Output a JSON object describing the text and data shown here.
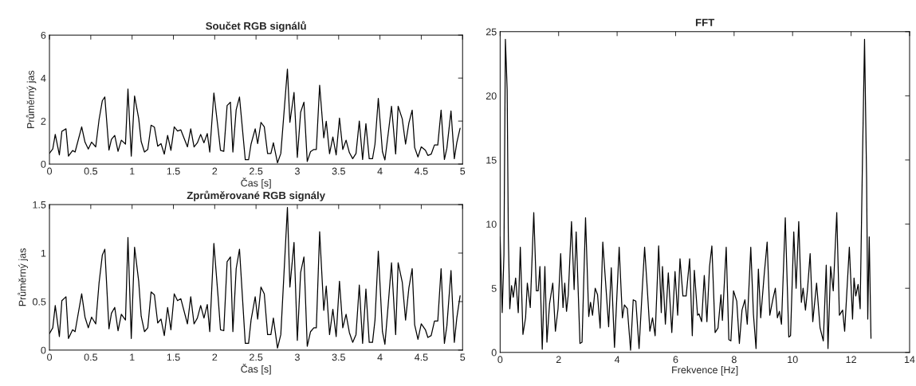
{
  "chart_data": [
    {
      "type": "line",
      "title": "Součet RGB signálů",
      "xlabel": "Čas [s]",
      "ylabel": "Průměrný jas",
      "x": [
        0,
        0.04,
        0.07,
        0.12,
        0.15,
        0.2,
        0.23,
        0.28,
        0.31,
        0.39,
        0.43,
        0.47,
        0.51,
        0.56,
        0.6,
        0.64,
        0.67,
        0.72,
        0.75,
        0.79,
        0.83,
        0.87,
        0.92,
        0.95,
        0.99,
        1.03,
        1.08,
        1.11,
        1.15,
        1.19,
        1.23,
        1.27,
        1.31,
        1.35,
        1.39,
        1.43,
        1.47,
        1.51,
        1.55,
        1.59,
        1.67,
        1.71,
        1.75,
        1.79,
        1.83,
        1.87,
        1.91,
        1.94,
        1.99,
        2.04,
        2.07,
        2.11,
        2.15,
        2.19,
        2.22,
        2.26,
        2.3,
        2.37,
        2.41,
        2.44,
        2.49,
        2.52,
        2.56,
        2.6,
        2.64,
        2.68,
        2.71,
        2.76,
        2.8,
        2.88,
        2.91,
        2.96,
        3.0,
        3.04,
        3.08,
        3.12,
        3.16,
        3.2,
        3.23,
        3.27,
        3.32,
        3.35,
        3.39,
        3.43,
        3.47,
        3.51,
        3.55,
        3.59,
        3.63,
        3.67,
        3.71,
        3.75,
        3.79,
        3.83,
        3.87,
        3.91,
        3.94,
        3.98,
        4.03,
        4.06,
        4.1,
        4.14,
        4.19,
        4.22,
        4.27,
        4.31,
        4.35,
        4.39,
        4.42,
        4.46,
        4.5,
        4.55,
        4.58,
        4.62,
        4.66,
        4.7,
        4.74,
        4.78,
        4.81,
        4.86,
        4.9,
        4.93,
        4.97
      ],
      "series": [
        {
          "color": "#000000",
          "values": [
            0.5,
            0.7,
            1.38,
            0.43,
            1.52,
            1.64,
            0.37,
            0.63,
            0.56,
            1.73,
            1.02,
            0.7,
            1.02,
            0.8,
            2.06,
            2.95,
            3.12,
            0.65,
            1.15,
            1.33,
            0.59,
            1.11,
            0.93,
            3.49,
            0.37,
            3.17,
            2.12,
            1.05,
            0.56,
            0.68,
            1.81,
            1.72,
            0.83,
            0.95,
            0.46,
            1.33,
            0.64,
            1.73,
            1.54,
            1.59,
            0.8,
            1.64,
            0.8,
            0.99,
            1.38,
            0.99,
            1.42,
            0.56,
            3.31,
            1.67,
            0.64,
            0.59,
            2.72,
            2.88,
            0.56,
            2.53,
            3.12,
            0.2,
            0.2,
            0.93,
            1.64,
            0.95,
            1.94,
            1.73,
            0.49,
            0.49,
            0.99,
            0.06,
            0.49,
            4.42,
            1.94,
            3.33,
            0.31,
            2.41,
            2.88,
            0.12,
            0.58,
            0.68,
            0.68,
            3.67,
            1.22,
            1.99,
            0.48,
            1.26,
            0.43,
            2.14,
            0.68,
            1.11,
            0.53,
            0.25,
            0.49,
            2.0,
            0.21,
            1.88,
            0.25,
            0.25,
            0.93,
            3.06,
            0.58,
            0.19,
            1.42,
            2.69,
            0.47,
            2.69,
            2.1,
            0.93,
            1.91,
            2.51,
            0.77,
            0.33,
            0.8,
            0.64,
            0.4,
            0.46,
            0.89,
            0.89,
            2.51,
            0.21,
            0.74,
            2.47,
            0.25,
            0.99,
            1.67
          ]
        }
      ],
      "xlim": [
        0,
        5
      ],
      "ylim": [
        0,
        6
      ],
      "xticks": [
        0,
        0.5,
        1,
        1.5,
        2,
        2.5,
        3,
        3.5,
        4,
        4.5,
        5
      ],
      "yticks": [
        0,
        2,
        4,
        6
      ]
    },
    {
      "type": "line",
      "title": "Zprůměrované RGB signály",
      "xlabel": "Čas [s]",
      "ylabel": "Průměrný jas",
      "x": [
        0,
        0.04,
        0.07,
        0.12,
        0.15,
        0.2,
        0.23,
        0.28,
        0.31,
        0.39,
        0.43,
        0.47,
        0.51,
        0.56,
        0.6,
        0.64,
        0.67,
        0.72,
        0.75,
        0.79,
        0.83,
        0.87,
        0.92,
        0.95,
        0.99,
        1.03,
        1.08,
        1.11,
        1.15,
        1.19,
        1.23,
        1.27,
        1.31,
        1.35,
        1.39,
        1.43,
        1.47,
        1.51,
        1.55,
        1.59,
        1.67,
        1.71,
        1.75,
        1.79,
        1.83,
        1.87,
        1.91,
        1.94,
        1.99,
        2.04,
        2.07,
        2.11,
        2.15,
        2.19,
        2.22,
        2.26,
        2.3,
        2.37,
        2.41,
        2.44,
        2.49,
        2.52,
        2.56,
        2.6,
        2.64,
        2.68,
        2.71,
        2.76,
        2.8,
        2.88,
        2.91,
        2.96,
        3.0,
        3.04,
        3.08,
        3.12,
        3.16,
        3.2,
        3.23,
        3.27,
        3.32,
        3.35,
        3.39,
        3.43,
        3.47,
        3.51,
        3.55,
        3.59,
        3.63,
        3.67,
        3.71,
        3.75,
        3.79,
        3.83,
        3.87,
        3.91,
        3.94,
        3.98,
        4.03,
        4.06,
        4.1,
        4.14,
        4.19,
        4.22,
        4.27,
        4.31,
        4.35,
        4.39,
        4.42,
        4.46,
        4.5,
        4.55,
        4.58,
        4.62,
        4.66,
        4.7,
        4.74,
        4.78,
        4.81,
        4.86,
        4.9,
        4.93,
        4.97
      ],
      "series": [
        {
          "color": "#000000",
          "values": [
            0.17,
            0.23,
            0.46,
            0.14,
            0.51,
            0.55,
            0.12,
            0.21,
            0.19,
            0.58,
            0.34,
            0.23,
            0.34,
            0.27,
            0.69,
            0.98,
            1.04,
            0.22,
            0.38,
            0.44,
            0.2,
            0.37,
            0.31,
            1.16,
            0.12,
            1.06,
            0.71,
            0.35,
            0.19,
            0.23,
            0.6,
            0.57,
            0.28,
            0.32,
            0.15,
            0.44,
            0.21,
            0.58,
            0.51,
            0.53,
            0.27,
            0.55,
            0.27,
            0.33,
            0.46,
            0.33,
            0.47,
            0.19,
            1.1,
            0.56,
            0.21,
            0.2,
            0.91,
            0.96,
            0.19,
            0.84,
            1.04,
            0.07,
            0.07,
            0.31,
            0.55,
            0.32,
            0.65,
            0.58,
            0.16,
            0.16,
            0.33,
            0.02,
            0.16,
            1.47,
            0.65,
            1.11,
            0.1,
            0.8,
            0.96,
            0.04,
            0.19,
            0.23,
            0.23,
            1.22,
            0.41,
            0.66,
            0.16,
            0.42,
            0.14,
            0.71,
            0.23,
            0.37,
            0.18,
            0.08,
            0.16,
            0.67,
            0.07,
            0.63,
            0.08,
            0.08,
            0.31,
            1.02,
            0.19,
            0.06,
            0.47,
            0.9,
            0.16,
            0.9,
            0.7,
            0.31,
            0.64,
            0.84,
            0.26,
            0.11,
            0.27,
            0.21,
            0.13,
            0.15,
            0.3,
            0.3,
            0.84,
            0.07,
            0.25,
            0.82,
            0.08,
            0.33,
            0.56
          ]
        }
      ],
      "xlim": [
        0,
        5
      ],
      "ylim": [
        0,
        1.5
      ],
      "xticks": [
        0,
        0.5,
        1,
        1.5,
        2,
        2.5,
        3,
        3.5,
        4,
        4.5,
        5
      ],
      "yticks": [
        0,
        0.5,
        1,
        1.5
      ]
    },
    {
      "type": "line",
      "title": "FFT",
      "xlabel": "Frekvence [Hz]",
      "x": [
        0,
        0.07,
        0.13,
        0.18,
        0.24,
        0.28,
        0.33,
        0.39,
        0.45,
        0.53,
        0.62,
        0.69,
        0.78,
        0.87,
        0.93,
        1.03,
        1.15,
        1.24,
        1.3,
        1.36,
        1.44,
        1.53,
        1.6,
        1.69,
        1.8,
        1.89,
        1.98,
        2.07,
        2.15,
        2.21,
        2.27,
        2.33,
        2.44,
        2.53,
        2.6,
        2.73,
        2.8,
        2.92,
        3.03,
        3.09,
        3.16,
        3.25,
        3.33,
        3.42,
        3.51,
        3.62,
        3.71,
        3.8,
        3.91,
        4.07,
        4.18,
        4.25,
        4.35,
        4.46,
        4.55,
        4.64,
        4.75,
        4.85,
        4.94,
        5.03,
        5.12,
        5.21,
        5.3,
        5.42,
        5.51,
        5.55,
        5.65,
        5.75,
        5.87,
        5.98,
        6.07,
        6.15,
        6.25,
        6.36,
        6.48,
        6.57,
        6.64,
        6.75,
        6.8,
        6.89,
        6.98,
        7.07,
        7.16,
        7.24,
        7.35,
        7.45,
        7.55,
        7.6,
        7.73,
        7.82,
        7.89,
        7.98,
        8.09,
        8.18,
        8.27,
        8.37,
        8.45,
        8.57,
        8.66,
        8.75,
        8.83,
        8.91,
        9.03,
        9.13,
        9.22,
        9.33,
        9.41,
        9.48,
        9.55,
        9.62,
        9.75,
        9.87,
        9.93,
        10.04,
        10.12,
        10.21,
        10.3,
        10.36,
        10.44,
        10.51,
        10.6,
        10.69,
        10.82,
        10.94,
        11.05,
        11.15,
        11.21,
        11.3,
        11.39,
        11.51,
        11.6,
        11.71,
        11.78,
        11.94,
        12.05,
        12.1,
        12.16,
        12.24,
        12.31,
        12.39,
        12.46,
        12.53,
        12.57,
        12.62,
        12.68
      ],
      "series": [
        {
          "color": "#000000",
          "values": [
            9.0,
            3.1,
            7.6,
            24.4,
            20.5,
            9.1,
            3.4,
            5.2,
            4.3,
            5.8,
            3.1,
            8.2,
            1.4,
            2.7,
            5.4,
            3.5,
            10.9,
            4.8,
            4.8,
            6.7,
            0.25,
            6.7,
            0.8,
            3.8,
            5.4,
            1.65,
            3.4,
            7.7,
            3.5,
            5.4,
            3.2,
            4.5,
            10.2,
            4.9,
            9.4,
            0.7,
            0.8,
            10.5,
            2.8,
            3.9,
            2.9,
            5.0,
            4.5,
            1.9,
            8.6,
            5.0,
            2.0,
            6.6,
            0.4,
            8.2,
            2.7,
            3.7,
            3.4,
            0.17,
            4.1,
            4.0,
            0.3,
            4.5,
            8.2,
            5.0,
            1.65,
            2.7,
            1.3,
            8.3,
            3.1,
            6.7,
            2.2,
            6.2,
            1.55,
            6.3,
            2.9,
            7.3,
            4.4,
            4.4,
            7.3,
            1.3,
            6.4,
            2.9,
            3.0,
            2.4,
            6.0,
            2.4,
            6.7,
            8.3,
            1.55,
            1.9,
            4.5,
            2.5,
            8.2,
            1.0,
            0.9,
            4.8,
            4.0,
            0.7,
            3.3,
            4.1,
            2.2,
            8.2,
            3.0,
            0.3,
            6.5,
            2.7,
            6.1,
            8.6,
            2.9,
            4.2,
            5.0,
            2.7,
            3.2,
            2.2,
            10.5,
            1.2,
            1.3,
            9.4,
            5.0,
            10.2,
            3.9,
            5.0,
            3.3,
            4.9,
            7.7,
            2.4,
            5.4,
            1.9,
            0.9,
            6.8,
            0.3,
            6.7,
            4.8,
            10.9,
            2.9,
            3.3,
            1.65,
            8.2,
            2.6,
            5.8,
            4.4,
            5.3,
            3.4,
            15.1,
            24.4,
            13.6,
            2.6,
            9.0,
            1.1
          ]
        }
      ],
      "xlim": [
        0,
        14
      ],
      "ylim": [
        0,
        25
      ],
      "xticks": [
        0,
        2,
        4,
        6,
        8,
        10,
        12,
        14
      ],
      "yticks": [
        0,
        5,
        10,
        15,
        20,
        25
      ]
    }
  ]
}
